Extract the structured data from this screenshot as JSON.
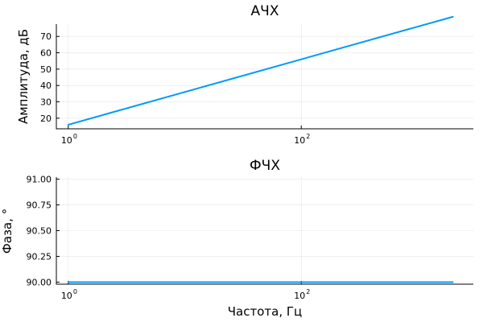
{
  "chart_data": [
    {
      "type": "line",
      "title": "АЧХ",
      "ylabel": "Амплитуда, дБ",
      "xlabel": "",
      "xscale": "log10",
      "xlim": [
        0.79,
        3000
      ],
      "ylim": [
        13.5,
        77.5
      ],
      "xticks": [
        {
          "base": "10",
          "exp": "0",
          "value": 1
        },
        {
          "base": "10",
          "exp": "2",
          "value": 100
        }
      ],
      "yticks": [
        "20",
        "30",
        "40",
        "50",
        "60",
        "70"
      ],
      "grid": true,
      "legend": "none",
      "color": "#009af9",
      "x": [
        1,
        10,
        100,
        1000,
        2000
      ],
      "y": [
        16,
        36,
        56,
        76,
        82
      ]
    },
    {
      "type": "line",
      "title": "ФЧХ",
      "ylabel": "Фаза, °",
      "xlabel": "Частота, Гц",
      "xscale": "log10",
      "xlim": [
        0.79,
        3000
      ],
      "ylim": [
        89.98,
        91.02
      ],
      "xticks": [
        {
          "base": "10",
          "exp": "0",
          "value": 1
        },
        {
          "base": "10",
          "exp": "2",
          "value": 100
        }
      ],
      "yticks": [
        "90.00",
        "90.25",
        "90.50",
        "90.75",
        "91.00"
      ],
      "grid": true,
      "legend": "none",
      "color": "#009af9",
      "x": [
        1,
        2000
      ],
      "y": [
        90,
        90
      ]
    }
  ]
}
